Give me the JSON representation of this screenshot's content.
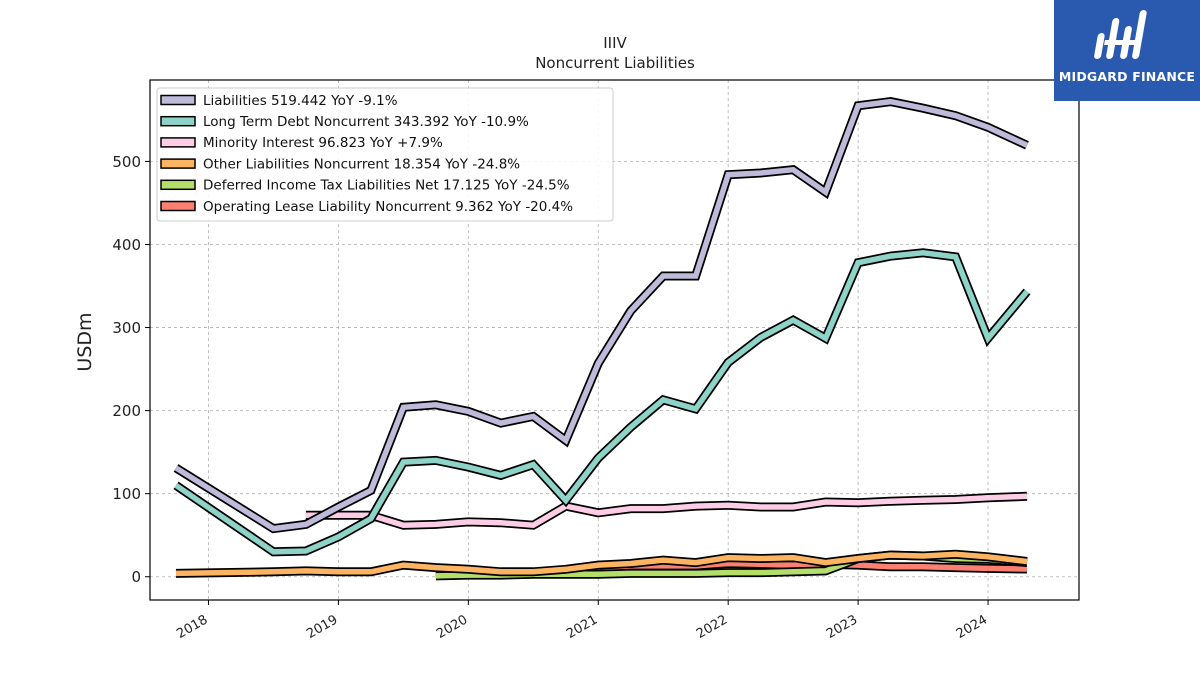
{
  "chart_data": {
    "type": "line",
    "title": "IIIV",
    "subtitle": "Noncurrent  Liabilities",
    "xlabel": "",
    "ylabel": "USDm",
    "ylim": [
      -28,
      598
    ],
    "xlim": [
      2017.55,
      2024.7
    ],
    "yticks": [
      0,
      100,
      200,
      300,
      400,
      500
    ],
    "xticks": [
      "2018",
      "2019",
      "2020",
      "2021",
      "2022",
      "2023",
      "2024"
    ],
    "grid": true,
    "legend_position": "top-left",
    "series": [
      {
        "name": "Liabilities",
        "legend": "Liabilities  519.442 YoY -9.1%",
        "color": "#bebada",
        "points": [
          [
            2017.75,
            131
          ],
          [
            2018.5,
            58
          ],
          [
            2018.75,
            63
          ],
          [
            2019.0,
            84
          ],
          [
            2019.25,
            104
          ],
          [
            2019.5,
            204
          ],
          [
            2019.75,
            207
          ],
          [
            2020.0,
            199
          ],
          [
            2020.25,
            185
          ],
          [
            2020.5,
            193
          ],
          [
            2020.75,
            164
          ],
          [
            2021.0,
            257
          ],
          [
            2021.25,
            320
          ],
          [
            2021.5,
            362
          ],
          [
            2021.75,
            362
          ],
          [
            2022.0,
            484
          ],
          [
            2022.25,
            486
          ],
          [
            2022.5,
            490
          ],
          [
            2022.75,
            463
          ],
          [
            2023.0,
            567
          ],
          [
            2023.25,
            572
          ],
          [
            2023.5,
            564
          ],
          [
            2023.75,
            555
          ],
          [
            2024.0,
            541
          ],
          [
            2024.3,
            519.442
          ]
        ]
      },
      {
        "name": "Long Term Debt Noncurrent",
        "legend": "Long Term Debt Noncurrent  343.392 YoY -10.9%",
        "color": "#8dd3c7",
        "points": [
          [
            2017.75,
            110
          ],
          [
            2018.5,
            30
          ],
          [
            2018.75,
            31
          ],
          [
            2019.0,
            48
          ],
          [
            2019.25,
            70
          ],
          [
            2019.5,
            138
          ],
          [
            2019.75,
            140
          ],
          [
            2020.0,
            132
          ],
          [
            2020.25,
            122
          ],
          [
            2020.5,
            135
          ],
          [
            2020.75,
            92
          ],
          [
            2021.0,
            143
          ],
          [
            2021.25,
            180
          ],
          [
            2021.5,
            213
          ],
          [
            2021.75,
            202
          ],
          [
            2022.0,
            258
          ],
          [
            2022.25,
            288
          ],
          [
            2022.5,
            309
          ],
          [
            2022.75,
            287
          ],
          [
            2023.0,
            378
          ],
          [
            2023.25,
            386
          ],
          [
            2023.5,
            390
          ],
          [
            2023.75,
            385
          ],
          [
            2024.0,
            287
          ],
          [
            2024.3,
            343.392
          ]
        ]
      },
      {
        "name": "Minority Interest",
        "legend": "Minority Interest  96.823 YoY +7.9%",
        "color": "#fccde5",
        "points": [
          [
            2018.75,
            74
          ],
          [
            2019.0,
            74
          ],
          [
            2019.25,
            74
          ],
          [
            2019.5,
            62
          ],
          [
            2019.75,
            63
          ],
          [
            2020.0,
            66
          ],
          [
            2020.25,
            65
          ],
          [
            2020.5,
            62
          ],
          [
            2020.75,
            85
          ],
          [
            2021.0,
            77
          ],
          [
            2021.25,
            82
          ],
          [
            2021.5,
            82
          ],
          [
            2021.75,
            85
          ],
          [
            2022.0,
            86
          ],
          [
            2022.25,
            84
          ],
          [
            2022.5,
            84
          ],
          [
            2022.75,
            90
          ],
          [
            2023.0,
            89
          ],
          [
            2023.25,
            91
          ],
          [
            2023.5,
            92
          ],
          [
            2023.75,
            93
          ],
          [
            2024.0,
            95
          ],
          [
            2024.3,
            96.823
          ]
        ]
      },
      {
        "name": "Other Liabilities Noncurrent",
        "legend": "Other Liabilities Noncurrent  18.354 YoY -24.8%",
        "color": "#fdb462",
        "points": [
          [
            2017.75,
            4
          ],
          [
            2018.5,
            6
          ],
          [
            2018.75,
            7
          ],
          [
            2019.0,
            6
          ],
          [
            2019.25,
            6
          ],
          [
            2019.5,
            14
          ],
          [
            2019.75,
            11
          ],
          [
            2020.0,
            9
          ],
          [
            2020.25,
            6
          ],
          [
            2020.5,
            6
          ],
          [
            2020.75,
            9
          ],
          [
            2021.0,
            14
          ],
          [
            2021.25,
            16
          ],
          [
            2021.5,
            20
          ],
          [
            2021.75,
            17
          ],
          [
            2022.0,
            23
          ],
          [
            2022.25,
            22
          ],
          [
            2022.5,
            23
          ],
          [
            2022.75,
            17
          ],
          [
            2023.0,
            22
          ],
          [
            2023.25,
            26
          ],
          [
            2023.5,
            25
          ],
          [
            2023.75,
            27
          ],
          [
            2024.0,
            24
          ],
          [
            2024.3,
            18.354
          ]
        ]
      },
      {
        "name": "Deferred Income Tax Liabilities Net",
        "legend": "Deferred Income Tax Liabilities Net  17.125 YoY -24.5%",
        "color": "#b3de69",
        "points": [
          [
            2019.75,
            1
          ],
          [
            2020.0,
            2
          ],
          [
            2020.25,
            2
          ],
          [
            2020.5,
            3
          ],
          [
            2020.75,
            3
          ],
          [
            2021.0,
            3
          ],
          [
            2021.25,
            4
          ],
          [
            2021.5,
            4
          ],
          [
            2021.75,
            4
          ],
          [
            2022.0,
            5
          ],
          [
            2022.25,
            5
          ],
          [
            2022.5,
            6
          ],
          [
            2022.75,
            7
          ],
          [
            2023.0,
            22
          ],
          [
            2023.25,
            26
          ],
          [
            2023.5,
            25
          ],
          [
            2023.75,
            22
          ],
          [
            2024.0,
            21
          ],
          [
            2024.3,
            17.125
          ]
        ]
      },
      {
        "name": "Operating Lease Liability Noncurrent",
        "legend": "Operating Lease Liability Noncurrent  9.362 YoY -20.4%",
        "color": "#fb8072",
        "points": [
          [
            2021.0,
            10
          ],
          [
            2021.25,
            13
          ],
          [
            2021.5,
            13
          ],
          [
            2021.75,
            13
          ],
          [
            2022.0,
            16
          ],
          [
            2022.25,
            15
          ],
          [
            2022.5,
            14
          ],
          [
            2022.75,
            15
          ],
          [
            2023.0,
            14
          ],
          [
            2023.25,
            12
          ],
          [
            2023.5,
            12
          ],
          [
            2023.75,
            11
          ],
          [
            2024.0,
            10
          ],
          [
            2024.3,
            9.362
          ]
        ]
      }
    ]
  },
  "logo": {
    "text": "MIDGARD FINANCE",
    "icon": "midgard-finance-logo-icon",
    "background": "#2a5ab0"
  }
}
